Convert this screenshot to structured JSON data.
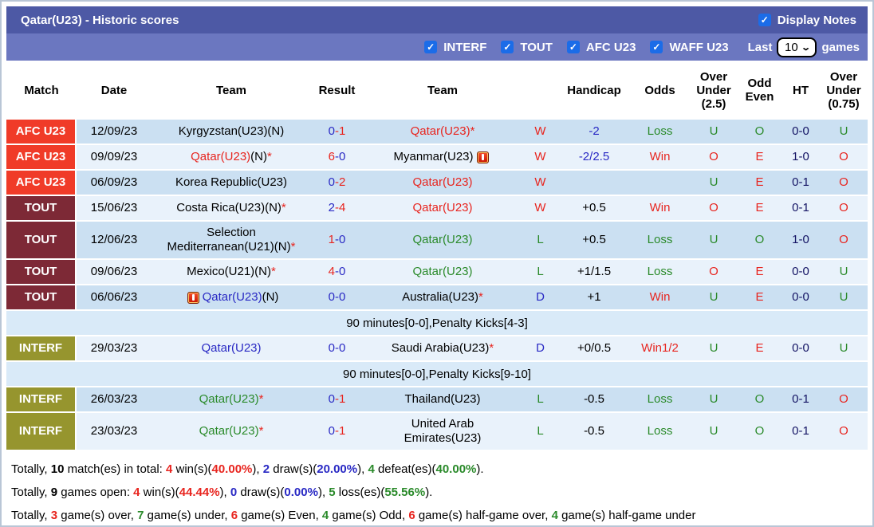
{
  "colors": {
    "titleBar": "#4d59a5",
    "toolbar": "#6b77c0",
    "checkbox": "#1b6ce8",
    "afc": "#f03b28",
    "tout": "#7d2936",
    "interf": "#96952e",
    "red": "#e8251f",
    "green": "#2a8a2a",
    "blue": "#2929c4",
    "navy": "#141464",
    "rowDark": "#cbe0f2",
    "rowLight": "#e9f2fb",
    "rowNote": "#d9eaf8"
  },
  "page": {
    "title": "Qatar(U23) - Historic scores",
    "display_notes_label": "Display Notes",
    "display_notes_checked": true,
    "last_label": "Last",
    "last_value": "10",
    "games_label": "games",
    "filters": [
      {
        "label": "INTERF",
        "checked": true
      },
      {
        "label": "TOUT",
        "checked": true
      },
      {
        "label": "AFC U23",
        "checked": true
      },
      {
        "label": "WAFF U23",
        "checked": true
      }
    ]
  },
  "table": {
    "headers": [
      {
        "key": "league",
        "label": "Match"
      },
      {
        "key": "date",
        "label": "Date"
      },
      {
        "key": "team",
        "label": "Team"
      },
      {
        "key": "result",
        "label": "Result"
      },
      {
        "key": "team2",
        "label": "Team"
      },
      {
        "key": "wdl",
        "label": ""
      },
      {
        "key": "hcp",
        "label": "Handicap"
      },
      {
        "key": "odds",
        "label": "Odds"
      },
      {
        "key": "ou25",
        "label": "Over\nUnder\n(2.5)"
      },
      {
        "key": "oe",
        "label": "Odd\nEven"
      },
      {
        "key": "ht",
        "label": "HT"
      },
      {
        "key": "ou75",
        "label": "Over\nUnder\n(0.75)"
      }
    ],
    "rows": [
      {
        "type": "match",
        "shade": "dark",
        "league": "AFC U23",
        "league_key": "afc",
        "date": "12/09/23",
        "home": {
          "parts": [
            {
              "t": "Kyrgyzstan(U23)(N)",
              "c": "black"
            }
          ]
        },
        "score": {
          "home": "0",
          "sep": "-",
          "away": "1",
          "home_c": "blue",
          "away_c": "red"
        },
        "away": {
          "parts": [
            {
              "t": "Qatar(U23)*",
              "c": "red"
            }
          ]
        },
        "wdl": {
          "t": "W",
          "c": "red"
        },
        "hcp": {
          "t": "-2",
          "c": "blue"
        },
        "odds": {
          "t": "Loss",
          "c": "green"
        },
        "ou25": {
          "t": "U",
          "c": "green"
        },
        "oe": {
          "t": "O",
          "c": "green"
        },
        "ht": "0-0",
        "ou75": {
          "t": "U",
          "c": "green"
        }
      },
      {
        "type": "match",
        "shade": "light",
        "league": "AFC U23",
        "league_key": "afc",
        "date": "09/09/23",
        "home": {
          "parts": [
            {
              "t": "Qatar(U23)",
              "c": "red"
            },
            {
              "t": "(N)",
              "c": "black"
            },
            {
              "t": "*",
              "c": "red"
            }
          ]
        },
        "score": {
          "home": "6",
          "sep": "-",
          "away": "0",
          "home_c": "red",
          "away_c": "blue"
        },
        "away": {
          "parts": [
            {
              "t": "Myanmar(U23)",
              "c": "black"
            }
          ],
          "icon": "after"
        },
        "wdl": {
          "t": "W",
          "c": "red"
        },
        "hcp": {
          "t": "-2/2.5",
          "c": "blue"
        },
        "odds": {
          "t": "Win",
          "c": "red"
        },
        "ou25": {
          "t": "O",
          "c": "red"
        },
        "oe": {
          "t": "E",
          "c": "red"
        },
        "ht": "1-0",
        "ou75": {
          "t": "O",
          "c": "red"
        }
      },
      {
        "type": "match",
        "shade": "dark",
        "league": "AFC U23",
        "league_key": "afc",
        "date": "06/09/23",
        "home": {
          "parts": [
            {
              "t": "Korea Republic(U23)",
              "c": "black"
            }
          ]
        },
        "score": {
          "home": "0",
          "sep": "-",
          "away": "2",
          "home_c": "blue",
          "away_c": "red"
        },
        "away": {
          "parts": [
            {
              "t": "Qatar(U23)",
              "c": "red"
            }
          ]
        },
        "wdl": {
          "t": "W",
          "c": "red"
        },
        "hcp": {
          "t": "",
          "c": "black"
        },
        "odds": {
          "t": "",
          "c": "black"
        },
        "ou25": {
          "t": "U",
          "c": "green"
        },
        "oe": {
          "t": "E",
          "c": "red"
        },
        "ht": "0-1",
        "ou75": {
          "t": "O",
          "c": "red"
        }
      },
      {
        "type": "match",
        "shade": "light",
        "league": "TOUT",
        "league_key": "tout",
        "date": "15/06/23",
        "home": {
          "parts": [
            {
              "t": "Costa Rica(U23)(N)",
              "c": "black"
            },
            {
              "t": "*",
              "c": "red"
            }
          ]
        },
        "score": {
          "home": "2",
          "sep": "-",
          "away": "4",
          "home_c": "blue",
          "away_c": "red"
        },
        "away": {
          "parts": [
            {
              "t": "Qatar(U23)",
              "c": "red"
            }
          ]
        },
        "wdl": {
          "t": "W",
          "c": "red"
        },
        "hcp": {
          "t": "+0.5",
          "c": "black"
        },
        "odds": {
          "t": "Win",
          "c": "red"
        },
        "ou25": {
          "t": "O",
          "c": "red"
        },
        "oe": {
          "t": "E",
          "c": "red"
        },
        "ht": "0-1",
        "ou75": {
          "t": "O",
          "c": "red"
        }
      },
      {
        "type": "match",
        "shade": "dark",
        "tall": true,
        "league": "TOUT",
        "league_key": "tout",
        "date": "12/06/23",
        "home": {
          "parts": [
            {
              "t": "Selection\nMediterranean(U21)(N)",
              "c": "black"
            },
            {
              "t": "*",
              "c": "red"
            }
          ]
        },
        "score": {
          "home": "1",
          "sep": "-",
          "away": "0",
          "home_c": "red",
          "away_c": "blue"
        },
        "away": {
          "parts": [
            {
              "t": "Qatar(U23)",
              "c": "green"
            }
          ]
        },
        "wdl": {
          "t": "L",
          "c": "green"
        },
        "hcp": {
          "t": "+0.5",
          "c": "black"
        },
        "odds": {
          "t": "Loss",
          "c": "green"
        },
        "ou25": {
          "t": "U",
          "c": "green"
        },
        "oe": {
          "t": "O",
          "c": "green"
        },
        "ht": "1-0",
        "ou75": {
          "t": "O",
          "c": "red"
        }
      },
      {
        "type": "match",
        "shade": "light",
        "league": "TOUT",
        "league_key": "tout",
        "date": "09/06/23",
        "home": {
          "parts": [
            {
              "t": "Mexico(U21)(N)",
              "c": "black"
            },
            {
              "t": "*",
              "c": "red"
            }
          ]
        },
        "score": {
          "home": "4",
          "sep": "-",
          "away": "0",
          "home_c": "red",
          "away_c": "blue"
        },
        "away": {
          "parts": [
            {
              "t": "Qatar(U23)",
              "c": "green"
            }
          ]
        },
        "wdl": {
          "t": "L",
          "c": "green"
        },
        "hcp": {
          "t": "+1/1.5",
          "c": "black"
        },
        "odds": {
          "t": "Loss",
          "c": "green"
        },
        "ou25": {
          "t": "O",
          "c": "red"
        },
        "oe": {
          "t": "E",
          "c": "red"
        },
        "ht": "0-0",
        "ou75": {
          "t": "U",
          "c": "green"
        }
      },
      {
        "type": "match",
        "shade": "dark",
        "league": "TOUT",
        "league_key": "tout",
        "date": "06/06/23",
        "home": {
          "parts": [
            {
              "t": "Qatar(U23)",
              "c": "blue"
            },
            {
              "t": "(N)",
              "c": "black"
            }
          ],
          "icon": "before"
        },
        "score": {
          "home": "0",
          "sep": "-",
          "away": "0",
          "home_c": "blue",
          "away_c": "blue"
        },
        "away": {
          "parts": [
            {
              "t": "Australia(U23)",
              "c": "black"
            },
            {
              "t": "*",
              "c": "red"
            }
          ]
        },
        "wdl": {
          "t": "D",
          "c": "blue"
        },
        "hcp": {
          "t": "+1",
          "c": "black"
        },
        "odds": {
          "t": "Win",
          "c": "red"
        },
        "ou25": {
          "t": "U",
          "c": "green"
        },
        "oe": {
          "t": "E",
          "c": "red"
        },
        "ht": "0-0",
        "ou75": {
          "t": "U",
          "c": "green"
        }
      },
      {
        "type": "note",
        "text": "90 minutes[0-0],Penalty Kicks[4-3]"
      },
      {
        "type": "match",
        "shade": "light",
        "league": "INTERF",
        "league_key": "interf",
        "date": "29/03/23",
        "home": {
          "parts": [
            {
              "t": "Qatar(U23)",
              "c": "blue"
            }
          ]
        },
        "score": {
          "home": "0",
          "sep": "-",
          "away": "0",
          "home_c": "blue",
          "away_c": "blue"
        },
        "away": {
          "parts": [
            {
              "t": "Saudi Arabia(U23)",
              "c": "black"
            },
            {
              "t": "*",
              "c": "red"
            }
          ]
        },
        "wdl": {
          "t": "D",
          "c": "blue"
        },
        "hcp": {
          "t": "+0/0.5",
          "c": "black"
        },
        "odds": {
          "t": "Win1/2",
          "c": "red"
        },
        "ou25": {
          "t": "U",
          "c": "green"
        },
        "oe": {
          "t": "E",
          "c": "red"
        },
        "ht": "0-0",
        "ou75": {
          "t": "U",
          "c": "green"
        }
      },
      {
        "type": "note",
        "text": "90 minutes[0-0],Penalty Kicks[9-10]"
      },
      {
        "type": "match",
        "shade": "dark",
        "league": "INTERF",
        "league_key": "interf",
        "date": "26/03/23",
        "home": {
          "parts": [
            {
              "t": "Qatar(U23)",
              "c": "green"
            },
            {
              "t": "*",
              "c": "red"
            }
          ]
        },
        "score": {
          "home": "0",
          "sep": "-",
          "away": "1",
          "home_c": "blue",
          "away_c": "red"
        },
        "away": {
          "parts": [
            {
              "t": "Thailand(U23)",
              "c": "black"
            }
          ]
        },
        "wdl": {
          "t": "L",
          "c": "green"
        },
        "hcp": {
          "t": "-0.5",
          "c": "black"
        },
        "odds": {
          "t": "Loss",
          "c": "green"
        },
        "ou25": {
          "t": "U",
          "c": "green"
        },
        "oe": {
          "t": "O",
          "c": "green"
        },
        "ht": "0-1",
        "ou75": {
          "t": "O",
          "c": "red"
        }
      },
      {
        "type": "match",
        "shade": "light",
        "tall": true,
        "league": "INTERF",
        "league_key": "interf",
        "date": "23/03/23",
        "home": {
          "parts": [
            {
              "t": "Qatar(U23)",
              "c": "green"
            },
            {
              "t": "*",
              "c": "red"
            }
          ]
        },
        "score": {
          "home": "0",
          "sep": "-",
          "away": "1",
          "home_c": "blue",
          "away_c": "red"
        },
        "away": {
          "parts": [
            {
              "t": "United Arab\nEmirates(U23)",
              "c": "black"
            }
          ]
        },
        "wdl": {
          "t": "L",
          "c": "green"
        },
        "hcp": {
          "t": "-0.5",
          "c": "black"
        },
        "odds": {
          "t": "Loss",
          "c": "green"
        },
        "ou25": {
          "t": "U",
          "c": "green"
        },
        "oe": {
          "t": "O",
          "c": "green"
        },
        "ht": "0-1",
        "ou75": {
          "t": "O",
          "c": "red"
        }
      }
    ]
  },
  "summary": {
    "lines": [
      [
        {
          "t": "Totally, ",
          "c": "black"
        },
        {
          "t": "10",
          "c": "black",
          "b": true
        },
        {
          "t": " match(es) in total: ",
          "c": "black"
        },
        {
          "t": "4",
          "c": "red",
          "b": true
        },
        {
          "t": " win(s)(",
          "c": "black"
        },
        {
          "t": "40.00%",
          "c": "red",
          "b": true
        },
        {
          "t": "), ",
          "c": "black"
        },
        {
          "t": "2",
          "c": "blue",
          "b": true
        },
        {
          "t": " draw(s)(",
          "c": "black"
        },
        {
          "t": "20.00%",
          "c": "blue",
          "b": true
        },
        {
          "t": "), ",
          "c": "black"
        },
        {
          "t": "4",
          "c": "green",
          "b": true
        },
        {
          "t": " defeat(es)(",
          "c": "black"
        },
        {
          "t": "40.00%",
          "c": "green",
          "b": true
        },
        {
          "t": ").",
          "c": "black"
        }
      ],
      [
        {
          "t": "Totally, ",
          "c": "black"
        },
        {
          "t": "9",
          "c": "black",
          "b": true
        },
        {
          "t": " games open: ",
          "c": "black"
        },
        {
          "t": "4",
          "c": "red",
          "b": true
        },
        {
          "t": " win(s)(",
          "c": "black"
        },
        {
          "t": "44.44%",
          "c": "red",
          "b": true
        },
        {
          "t": "), ",
          "c": "black"
        },
        {
          "t": "0",
          "c": "blue",
          "b": true
        },
        {
          "t": " draw(s)(",
          "c": "black"
        },
        {
          "t": "0.00%",
          "c": "blue",
          "b": true
        },
        {
          "t": "), ",
          "c": "black"
        },
        {
          "t": "5",
          "c": "green",
          "b": true
        },
        {
          "t": " loss(es)(",
          "c": "black"
        },
        {
          "t": "55.56%",
          "c": "green",
          "b": true
        },
        {
          "t": ").",
          "c": "black"
        }
      ],
      [
        {
          "t": "Totally, ",
          "c": "black"
        },
        {
          "t": "3",
          "c": "red",
          "b": true
        },
        {
          "t": " game(s) over, ",
          "c": "black"
        },
        {
          "t": "7",
          "c": "green",
          "b": true
        },
        {
          "t": " game(s) under, ",
          "c": "black"
        },
        {
          "t": "6",
          "c": "red",
          "b": true
        },
        {
          "t": " game(s) Even, ",
          "c": "black"
        },
        {
          "t": "4",
          "c": "green",
          "b": true
        },
        {
          "t": " game(s) Odd, ",
          "c": "black"
        },
        {
          "t": "6",
          "c": "red",
          "b": true
        },
        {
          "t": " game(s) half-game over, ",
          "c": "black"
        },
        {
          "t": "4",
          "c": "green",
          "b": true
        },
        {
          "t": " game(s) half-game under",
          "c": "black"
        }
      ]
    ]
  }
}
